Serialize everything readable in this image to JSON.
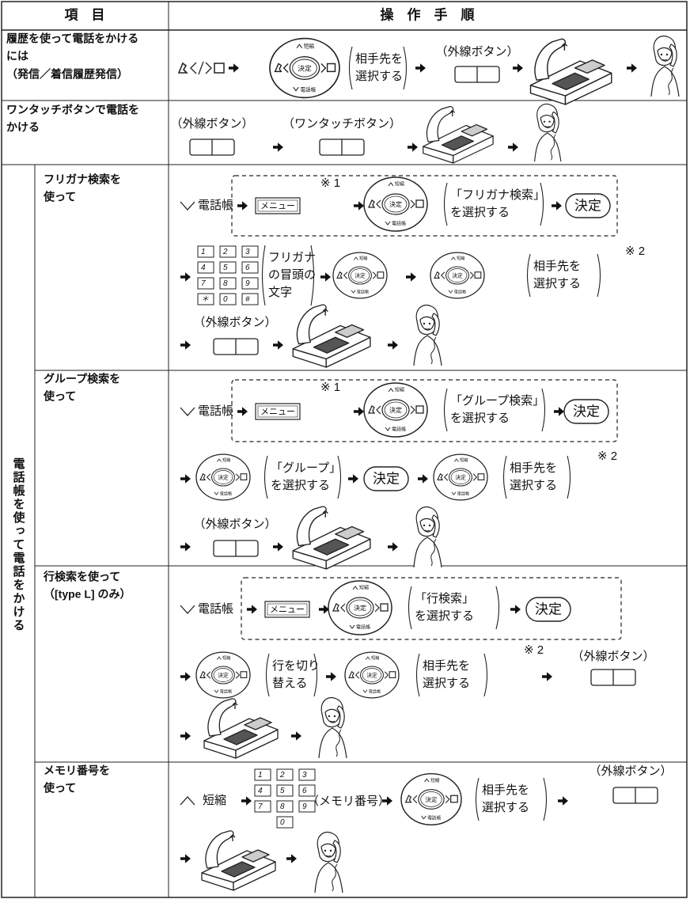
{
  "header": {
    "item": "項　目",
    "procedure": "操　作　手　順"
  },
  "nav_key": {
    "up": "短縮",
    "center": "決定",
    "down": "電話帳"
  },
  "keypad": [
    "1",
    "2",
    "3",
    "4",
    "5",
    "6",
    "7",
    "8",
    "9",
    "＊",
    "0",
    "#"
  ],
  "rows": [
    {
      "item": [
        "履歴を使って電話をかける",
        "には",
        "（発信／着信履歴発信）"
      ],
      "select": [
        "相手先を",
        "選択する"
      ],
      "outside": "（外線ボタン）"
    },
    {
      "item": [
        "ワンタッチボタンで電話を",
        "かける"
      ],
      "outside": "（外線ボタン）",
      "onetouch": "（ワンタッチボタン）"
    }
  ],
  "phonebook": {
    "label": "電話帳を使って電話をかける",
    "sub": [
      {
        "item": [
          "フリガナ検索を",
          "使って"
        ],
        "start": "電話帳",
        "menu": "メニュー",
        "note1": "※ 1",
        "choose": [
          "「フリガナ検索」",
          "を選択する"
        ],
        "decide": "決定",
        "chars": [
          "フリガナ",
          "の冒頭の",
          "文字"
        ],
        "select": [
          "相手先を",
          "選択する"
        ],
        "note2": "※ 2",
        "outside": "（外線ボタン）"
      },
      {
        "item": [
          "グループ検索を",
          "使って"
        ],
        "start": "電話帳",
        "menu": "メニュー",
        "note1": "※ 1",
        "choose": [
          "「グループ検索」",
          "を選択する"
        ],
        "decide": "決定",
        "group": [
          "「グループ」",
          "を選択する"
        ],
        "decide2": "決定",
        "select": [
          "相手先を",
          "選択する"
        ],
        "note2": "※ 2",
        "outside": "（外線ボタン）"
      },
      {
        "item": [
          "行検索を使って",
          "（[type L] のみ）"
        ],
        "start": "電話帳",
        "menu": "メニュー",
        "choose": [
          "「行検索」",
          "を選択する"
        ],
        "decide": "決定",
        "switch": [
          "行を切り",
          "替える"
        ],
        "select": [
          "相手先を",
          "選択する"
        ],
        "note2": "※ 2",
        "outside": "（外線ボタン）"
      },
      {
        "item": [
          "メモリ番号を",
          "使って"
        ],
        "start": "短縮",
        "memory": "（メモリ番号）",
        "select": [
          "相手先を",
          "選択する"
        ],
        "outside": "（外線ボタン）"
      }
    ]
  }
}
